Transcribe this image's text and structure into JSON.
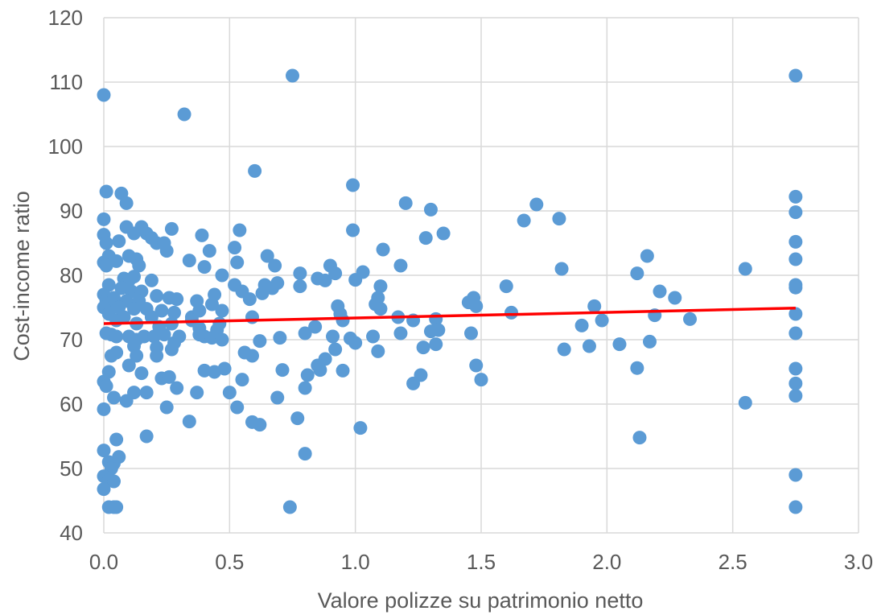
{
  "chart_data": {
    "type": "scatter",
    "title": "",
    "xlabel": "Valore polizze su patrimonio netto",
    "ylabel": "Cost-income ratio",
    "xlim": [
      0,
      3
    ],
    "ylim": [
      40,
      120
    ],
    "x_ticks": [
      "0.0",
      "0.5",
      "1.0",
      "1.5",
      "2.0",
      "2.5",
      "3.0"
    ],
    "y_ticks": [
      "40",
      "50",
      "60",
      "70",
      "80",
      "90",
      "100",
      "110",
      "120"
    ],
    "grid": true,
    "legend": "none",
    "colors": {
      "points": "#5b9bd5",
      "trendline": "#ff0000",
      "grid": "#d9d9d9"
    },
    "trendline": {
      "x": [
        0,
        2.75
      ],
      "y": [
        72.5,
        74.9
      ]
    },
    "points": [
      [
        0.0,
        108
      ],
      [
        0.01,
        93
      ],
      [
        0.0,
        88.7
      ],
      [
        0.0,
        86.3
      ],
      [
        0.01,
        85
      ],
      [
        0.0,
        82
      ],
      [
        0.02,
        83
      ],
      [
        0.01,
        81.5
      ],
      [
        0.02,
        78.5
      ],
      [
        0.0,
        77
      ],
      [
        0.01,
        76
      ],
      [
        0.03,
        75.5
      ],
      [
        0.0,
        75
      ],
      [
        0.02,
        74
      ],
      [
        0.04,
        76.5
      ],
      [
        0.05,
        73
      ],
      [
        0.01,
        71
      ],
      [
        0.03,
        70.8
      ],
      [
        0.05,
        70.5
      ],
      [
        0.03,
        67.5
      ],
      [
        0.05,
        68
      ],
      [
        0.02,
        65
      ],
      [
        0.0,
        63.5
      ],
      [
        0.01,
        62.8
      ],
      [
        0.04,
        61
      ],
      [
        0.0,
        59.2
      ],
      [
        0.05,
        54.5
      ],
      [
        0.0,
        52.8
      ],
      [
        0.02,
        51
      ],
      [
        0.04,
        50.8
      ],
      [
        0.06,
        51.8
      ],
      [
        0.03,
        50
      ],
      [
        0.0,
        48.8
      ],
      [
        0.02,
        48.2
      ],
      [
        0.04,
        48
      ],
      [
        0.0,
        46.8
      ],
      [
        0.02,
        44
      ],
      [
        0.04,
        44
      ],
      [
        0.05,
        44
      ],
      [
        0.07,
        92.7
      ],
      [
        0.09,
        91.2
      ],
      [
        0.06,
        85.3
      ],
      [
        0.09,
        87.5
      ],
      [
        0.12,
        86.5
      ],
      [
        0.15,
        87.5
      ],
      [
        0.17,
        86.5
      ],
      [
        0.19,
        85.8
      ],
      [
        0.21,
        85
      ],
      [
        0.24,
        85
      ],
      [
        0.27,
        87.2
      ],
      [
        0.25,
        83.8
      ],
      [
        0.1,
        83
      ],
      [
        0.13,
        82.5
      ],
      [
        0.05,
        82.2
      ],
      [
        0.14,
        81.5
      ],
      [
        0.08,
        79.5
      ],
      [
        0.1,
        79.2
      ],
      [
        0.12,
        79.8
      ],
      [
        0.19,
        79.2
      ],
      [
        0.07,
        78
      ],
      [
        0.11,
        77.5
      ],
      [
        0.15,
        77.5
      ],
      [
        0.21,
        76.8
      ],
      [
        0.26,
        76.5
      ],
      [
        0.29,
        76.3
      ],
      [
        0.09,
        76
      ],
      [
        0.14,
        76
      ],
      [
        0.06,
        75
      ],
      [
        0.12,
        74.8
      ],
      [
        0.17,
        74.8
      ],
      [
        0.23,
        74.5
      ],
      [
        0.28,
        74.2
      ],
      [
        0.08,
        73.5
      ],
      [
        0.19,
        73.5
      ],
      [
        0.13,
        72.5
      ],
      [
        0.22,
        72
      ],
      [
        0.27,
        72.5
      ],
      [
        0.3,
        70.5
      ],
      [
        0.1,
        70.5
      ],
      [
        0.13,
        70
      ],
      [
        0.16,
        70.5
      ],
      [
        0.2,
        70.5
      ],
      [
        0.24,
        70.8
      ],
      [
        0.28,
        69.5
      ],
      [
        0.12,
        69
      ],
      [
        0.21,
        68.8
      ],
      [
        0.27,
        68.5
      ],
      [
        0.13,
        67.5
      ],
      [
        0.21,
        67.5
      ],
      [
        0.1,
        66
      ],
      [
        0.15,
        64.8
      ],
      [
        0.23,
        64
      ],
      [
        0.26,
        64.2
      ],
      [
        0.29,
        62.5
      ],
      [
        0.12,
        61.8
      ],
      [
        0.17,
        61.8
      ],
      [
        0.09,
        60.5
      ],
      [
        0.25,
        59.5
      ],
      [
        0.17,
        55
      ],
      [
        0.34,
        57.3
      ],
      [
        0.32,
        105
      ],
      [
        0.34,
        82.3
      ],
      [
        0.39,
        86.2
      ],
      [
        0.42,
        83.8
      ],
      [
        0.4,
        81.3
      ],
      [
        0.47,
        80
      ],
      [
        0.37,
        76
      ],
      [
        0.44,
        77
      ],
      [
        0.43,
        75.5
      ],
      [
        0.35,
        73.5
      ],
      [
        0.38,
        74.5
      ],
      [
        0.47,
        74.5
      ],
      [
        0.46,
        72.5
      ],
      [
        0.38,
        71.8
      ],
      [
        0.35,
        73
      ],
      [
        0.4,
        70.5
      ],
      [
        0.43,
        70.3
      ],
      [
        0.45,
        71.5
      ],
      [
        0.47,
        70
      ],
      [
        0.38,
        70.8
      ],
      [
        0.4,
        65.2
      ],
      [
        0.44,
        65
      ],
      [
        0.48,
        65.5
      ],
      [
        0.37,
        61.8
      ],
      [
        0.5,
        61.8
      ],
      [
        0.53,
        82
      ],
      [
        0.54,
        87
      ],
      [
        0.52,
        84.3
      ],
      [
        0.52,
        78.5
      ],
      [
        0.55,
        77.5
      ],
      [
        0.58,
        76.3
      ],
      [
        0.59,
        73.5
      ],
      [
        0.56,
        68
      ],
      [
        0.59,
        67.5
      ],
      [
        0.55,
        63.8
      ],
      [
        0.53,
        59.5
      ],
      [
        0.59,
        57.2
      ],
      [
        0.62,
        56.8
      ],
      [
        0.6,
        96.2
      ],
      [
        0.65,
        83
      ],
      [
        0.68,
        81.5
      ],
      [
        0.64,
        78.5
      ],
      [
        0.67,
        78
      ],
      [
        0.69,
        78.8
      ],
      [
        0.63,
        77.2
      ],
      [
        0.62,
        69.8
      ],
      [
        0.7,
        70.3
      ],
      [
        0.71,
        65.3
      ],
      [
        0.69,
        61
      ],
      [
        0.75,
        111
      ],
      [
        0.78,
        80.3
      ],
      [
        0.78,
        78.3
      ],
      [
        0.8,
        71
      ],
      [
        0.85,
        79.5
      ],
      [
        0.84,
        72
      ],
      [
        0.81,
        64.5
      ],
      [
        0.8,
        62.5
      ],
      [
        0.77,
        57.8
      ],
      [
        0.8,
        52.3
      ],
      [
        0.74,
        44
      ],
      [
        0.88,
        79.2
      ],
      [
        0.9,
        81.5
      ],
      [
        0.92,
        80.3
      ],
      [
        0.93,
        75.2
      ],
      [
        0.94,
        74
      ],
      [
        0.95,
        73
      ],
      [
        0.91,
        70.5
      ],
      [
        0.92,
        68.5
      ],
      [
        0.88,
        67
      ],
      [
        0.85,
        66
      ],
      [
        0.86,
        65.3
      ],
      [
        0.95,
        65.2
      ],
      [
        0.99,
        94
      ],
      [
        0.99,
        87
      ],
      [
        1.0,
        79.3
      ],
      [
        1.03,
        80.5
      ],
      [
        0.98,
        70.2
      ],
      [
        1.0,
        69.5
      ],
      [
        1.02,
        56.3
      ],
      [
        1.11,
        84
      ],
      [
        1.1,
        78.3
      ],
      [
        1.09,
        76.5
      ],
      [
        1.08,
        75.5
      ],
      [
        1.1,
        74.8
      ],
      [
        1.18,
        81.5
      ],
      [
        1.17,
        73.5
      ],
      [
        1.18,
        71
      ],
      [
        1.07,
        70.5
      ],
      [
        1.09,
        68.2
      ],
      [
        1.2,
        91.2
      ],
      [
        1.23,
        73
      ],
      [
        1.28,
        85.8
      ],
      [
        1.27,
        68.8
      ],
      [
        1.26,
        64.5
      ],
      [
        1.23,
        63.2
      ],
      [
        1.3,
        90.2
      ],
      [
        1.35,
        86.5
      ],
      [
        1.32,
        73.2
      ],
      [
        1.3,
        71.3
      ],
      [
        1.33,
        71.5
      ],
      [
        1.32,
        69.3
      ],
      [
        1.45,
        75.8
      ],
      [
        1.47,
        76.5
      ],
      [
        1.48,
        75.2
      ],
      [
        1.46,
        71
      ],
      [
        1.48,
        66
      ],
      [
        1.5,
        63.8
      ],
      [
        1.6,
        78.3
      ],
      [
        1.62,
        74.2
      ],
      [
        1.67,
        88.5
      ],
      [
        1.72,
        91
      ],
      [
        1.81,
        88.8
      ],
      [
        1.82,
        81
      ],
      [
        1.83,
        68.5
      ],
      [
        1.9,
        72.2
      ],
      [
        1.93,
        69
      ],
      [
        1.95,
        75.2
      ],
      [
        1.98,
        73
      ],
      [
        2.05,
        69.3
      ],
      [
        2.12,
        80.3
      ],
      [
        2.12,
        65.6
      ],
      [
        2.13,
        54.8
      ],
      [
        2.16,
        83
      ],
      [
        2.17,
        69.7
      ],
      [
        2.19,
        73.8
      ],
      [
        2.21,
        77.5
      ],
      [
        2.27,
        76.5
      ],
      [
        2.33,
        73.2
      ],
      [
        2.55,
        81
      ],
      [
        2.55,
        60.2
      ],
      [
        2.75,
        111
      ],
      [
        2.75,
        92.2
      ],
      [
        2.75,
        89.8
      ],
      [
        2.75,
        85.2
      ],
      [
        2.75,
        82.5
      ],
      [
        2.75,
        78.5
      ],
      [
        2.75,
        78.1
      ],
      [
        2.75,
        74
      ],
      [
        2.75,
        71
      ],
      [
        2.75,
        65.5
      ],
      [
        2.75,
        63.2
      ],
      [
        2.75,
        61.3
      ],
      [
        2.75,
        49
      ],
      [
        2.75,
        44
      ]
    ]
  }
}
